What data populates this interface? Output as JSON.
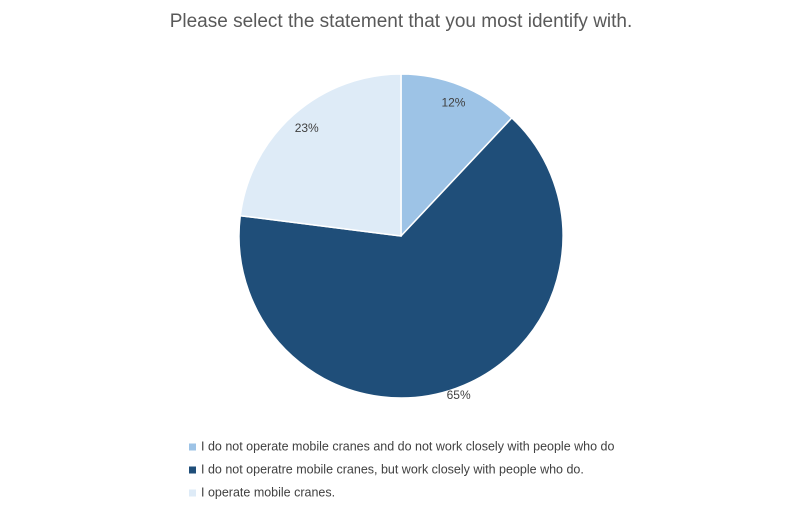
{
  "chart_data": {
    "type": "pie",
    "title": "Please select the statement that you most identify with.",
    "categories": [
      "I do not operate mobile cranes and do not work closely with people who do",
      "I do not operatre mobile cranes, but work closely with people who do.",
      "I operate mobile cranes."
    ],
    "values": [
      12,
      65,
      23
    ],
    "value_labels": [
      "12%",
      "65%",
      "23%"
    ],
    "colors": [
      "#9dc3e6",
      "#1f4e79",
      "#deebf7"
    ],
    "legend": "bottom"
  }
}
